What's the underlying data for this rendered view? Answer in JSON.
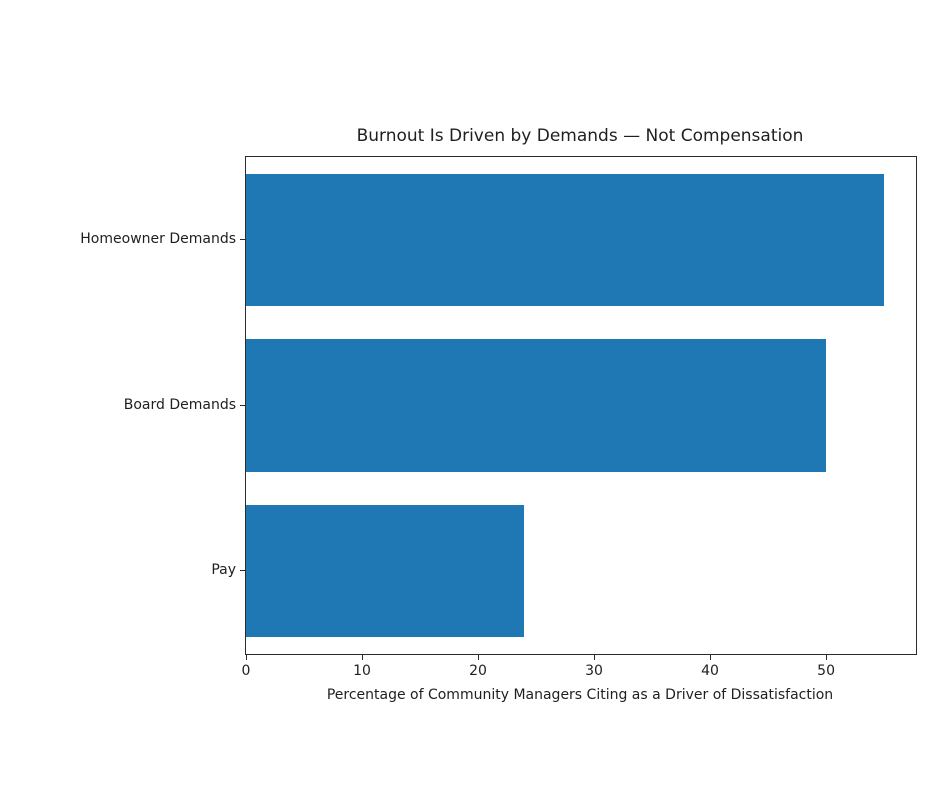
{
  "chart_data": {
    "type": "bar",
    "orientation": "horizontal",
    "title": "Burnout Is Driven by Demands — Not Compensation",
    "categories": [
      "Homeowner Demands",
      "Board Demands",
      "Pay"
    ],
    "values": [
      55,
      50,
      24
    ],
    "xlabel": "Percentage of Community Managers Citing as a Driver of Dissatisfaction",
    "ylabel": "",
    "xlim": [
      0,
      57.75
    ],
    "xticks": [
      0,
      10,
      20,
      30,
      40,
      50
    ],
    "grid": false,
    "legend": null,
    "colors": {
      "bar": "#1f77b4",
      "spine": "#2b2b2b",
      "text": "#1f1f1f",
      "background": "#ffffff"
    }
  }
}
